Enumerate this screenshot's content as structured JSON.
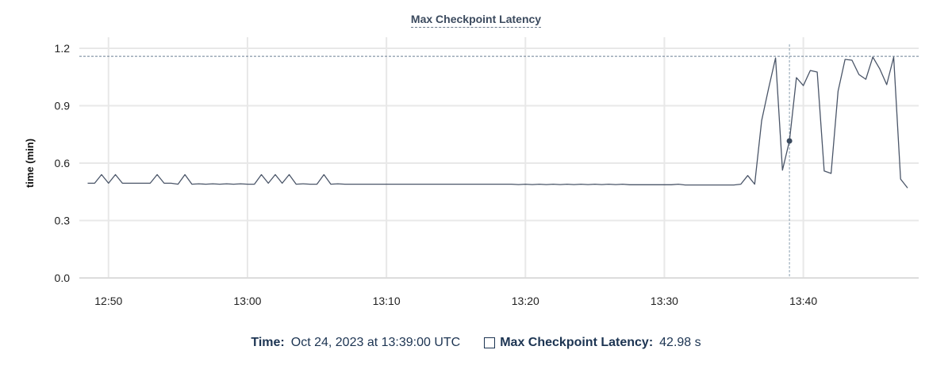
{
  "chart_data": {
    "type": "line",
    "title": "Max Checkpoint Latency",
    "xlabel": "",
    "ylabel": "time (min)",
    "x_start": "12:48:30",
    "x_step_seconds": 30,
    "xlim": [
      "12:47:54",
      "13:48:18"
    ],
    "ylim": [
      0,
      1.2
    ],
    "x_ticks": [
      "12:50",
      "13:00",
      "13:10",
      "13:20",
      "13:30",
      "13:40"
    ],
    "y_ticks": [
      "0.0",
      "0.3",
      "0.6",
      "0.9",
      "1.2"
    ],
    "grid": true,
    "max_line": 1.158,
    "hover_time": "13:39:00",
    "hover_value": 0.716,
    "series": [
      {
        "color": "#4a5568",
        "values": [
          0.495,
          0.495,
          0.54,
          0.495,
          0.54,
          0.495,
          0.495,
          0.495,
          0.495,
          0.495,
          0.54,
          0.495,
          0.495,
          0.49,
          0.54,
          0.49,
          0.492,
          0.49,
          0.492,
          0.49,
          0.492,
          0.49,
          0.492,
          0.49,
          0.49,
          0.54,
          0.495,
          0.54,
          0.495,
          0.54,
          0.49,
          0.492,
          0.49,
          0.49,
          0.54,
          0.49,
          0.492,
          0.49,
          0.49,
          0.49,
          0.49,
          0.49,
          0.49,
          0.49,
          0.49,
          0.49,
          0.49,
          0.49,
          0.49,
          0.49,
          0.49,
          0.49,
          0.49,
          0.49,
          0.49,
          0.49,
          0.49,
          0.49,
          0.49,
          0.49,
          0.49,
          0.49,
          0.488,
          0.49,
          0.488,
          0.49,
          0.488,
          0.49,
          0.488,
          0.49,
          0.488,
          0.49,
          0.488,
          0.49,
          0.488,
          0.49,
          0.488,
          0.49,
          0.487,
          0.487,
          0.487,
          0.487,
          0.487,
          0.487,
          0.487,
          0.49,
          0.486,
          0.486,
          0.486,
          0.486,
          0.486,
          0.486,
          0.486,
          0.486,
          0.49,
          0.535,
          0.49,
          0.823,
          0.99,
          1.15,
          0.563,
          0.716,
          1.047,
          1.005,
          1.084,
          1.076,
          0.559,
          0.546,
          0.976,
          1.142,
          1.138,
          1.063,
          1.038,
          1.154,
          1.092,
          1.01,
          1.154,
          0.517,
          0.47
        ]
      }
    ]
  },
  "legend": {
    "time_label": "Time:",
    "time_value": "Oct 24, 2023 at 13:39:00 UTC",
    "series_label": "Max Checkpoint Latency:",
    "series_value": "42.98 s"
  }
}
